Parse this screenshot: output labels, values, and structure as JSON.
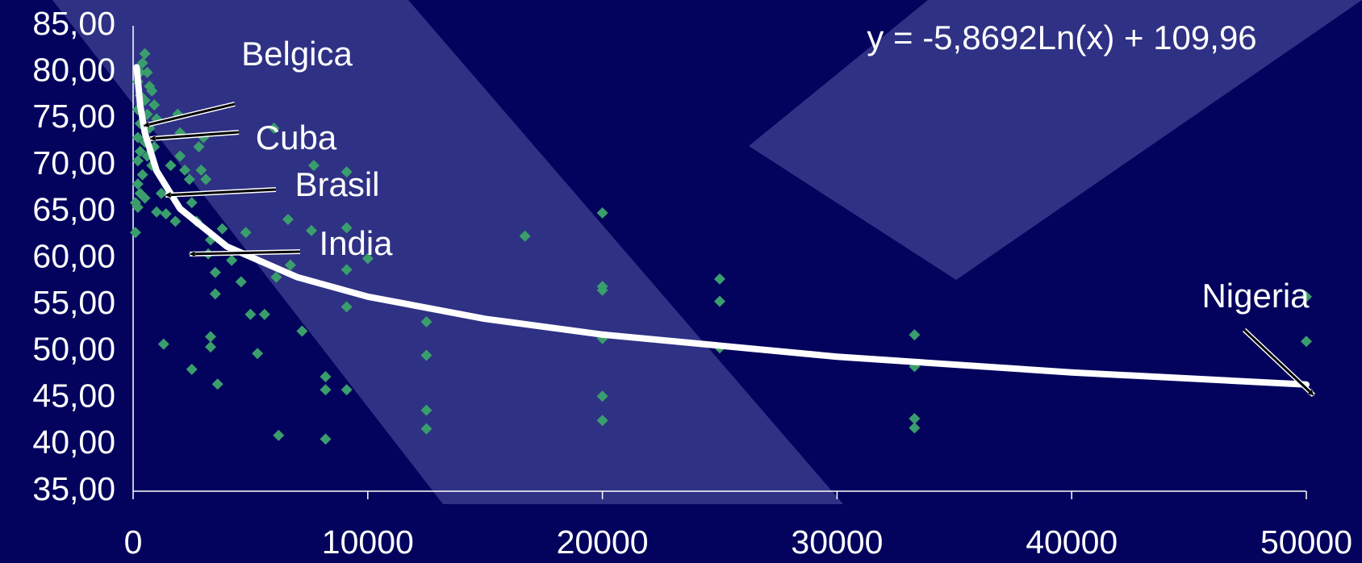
{
  "chart_data": {
    "type": "scatter",
    "xlim": [
      0,
      50000
    ],
    "ylim": [
      35,
      85
    ],
    "xticks": [
      0,
      10000,
      20000,
      30000,
      40000,
      50000
    ],
    "yticks": [
      {
        "value": 35,
        "label": "35,00"
      },
      {
        "value": 40,
        "label": "40,00"
      },
      {
        "value": 45,
        "label": "45,00"
      },
      {
        "value": 50,
        "label": "50,00"
      },
      {
        "value": 55,
        "label": "55,00"
      },
      {
        "value": 60,
        "label": "60,00"
      },
      {
        "value": 65,
        "label": "65,00"
      },
      {
        "value": 70,
        "label": "70,00"
      },
      {
        "value": 75,
        "label": "75,00"
      },
      {
        "value": 80,
        "label": "80,00"
      },
      {
        "value": 85,
        "label": "85,00"
      }
    ],
    "series": [
      {
        "color": "#3a9e6c",
        "x": [
          500,
          400,
          300,
          600,
          200,
          700,
          800,
          300,
          500,
          900,
          200,
          600,
          1000,
          300,
          700,
          200,
          500,
          900,
          300,
          600,
          200,
          800,
          400,
          200,
          300,
          100,
          200,
          500,
          100,
          1200,
          1000,
          1400,
          1800,
          1600,
          2000,
          2200,
          1900,
          2000,
          2400,
          2800,
          3000,
          2900,
          3100,
          2500,
          2700,
          3300,
          3800,
          3200,
          3500,
          3500,
          4200,
          4600,
          4800,
          5000,
          5600,
          5300,
          6000,
          6600,
          6100,
          6700,
          7200,
          7700,
          7600,
          6200,
          8200,
          8200,
          8200,
          9100,
          9100,
          9100,
          9100,
          9100,
          10000,
          3300,
          3300,
          3600,
          2500,
          1300,
          12500,
          12500,
          12500,
          12500,
          16700,
          20000,
          20000,
          20000,
          20000,
          20000,
          20000,
          25000,
          25000,
          25000,
          33300,
          33300,
          33300,
          33300,
          50000,
          50000
        ],
        "values": [
          82,
          81,
          80,
          80,
          79,
          78.5,
          78,
          77.5,
          77,
          76.5,
          76,
          75.5,
          75,
          74.5,
          74,
          73,
          72.5,
          72,
          71.5,
          71,
          70.5,
          70,
          69,
          68,
          67,
          66,
          65.5,
          66.5,
          62.8,
          67,
          65,
          64.8,
          64,
          70,
          71,
          69.5,
          75.5,
          73.5,
          68.5,
          72,
          73,
          69.5,
          68.5,
          66,
          64,
          62,
          63.2,
          60.5,
          58.5,
          56.2,
          59.8,
          57.5,
          62.8,
          54,
          54,
          49.8,
          74,
          64.2,
          58,
          59.3,
          52.2,
          70,
          63,
          41,
          40.6,
          47.3,
          45.9,
          69.3,
          63.3,
          58.8,
          54.8,
          45.9,
          60,
          51.6,
          50.5,
          46.5,
          48.1,
          50.8,
          53.2,
          49.6,
          43.7,
          41.7,
          62.4,
          64.9,
          57,
          56.6,
          51.4,
          45.2,
          42.6,
          57.8,
          55.4,
          50.4,
          51.8,
          48.4,
          42.8,
          41.8,
          55.9,
          51.1
        ]
      }
    ],
    "trendline": {
      "label": "y = -5,8692Ln(x) + 109,96",
      "color": "#ffffff",
      "x": [
        150,
        300,
        500,
        1000,
        2000,
        4000,
        7000,
        10000,
        15000,
        20000,
        30000,
        40000,
        50000
      ],
      "values": [
        80.55,
        76.48,
        73.49,
        69.42,
        65.35,
        61.28,
        57.99,
        55.9,
        53.52,
        51.83,
        49.45,
        47.76,
        46.46
      ]
    },
    "annotations": [
      "Belgica",
      "Cuba",
      "Brasil",
      "India",
      "Nigeria"
    ]
  }
}
